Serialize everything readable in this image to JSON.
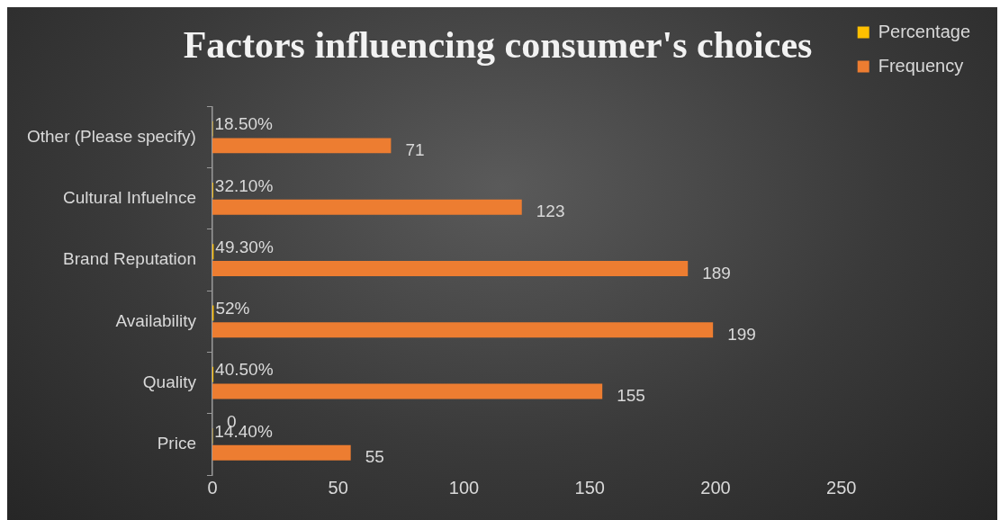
{
  "chart_data": {
    "type": "bar",
    "orientation": "horizontal",
    "title": "Factors influencing consumer's choices",
    "categories": [
      "Other (Please specify)",
      "Cultural Infuelnce",
      "Brand Reputation",
      "Availability",
      "Quality",
      "Price"
    ],
    "series": [
      {
        "name": "Percentage",
        "color": "#ffc000",
        "values": [
          0.185,
          0.321,
          0.493,
          0.52,
          0.405,
          0.144
        ],
        "value_labels": [
          "18.50%",
          "32.10%",
          "49.30%",
          "52%",
          "40.50%",
          "14.40%"
        ]
      },
      {
        "name": "Frequency",
        "color": "#ed7d31",
        "values": [
          71,
          123,
          189,
          199,
          155,
          55
        ],
        "value_labels": [
          "71",
          "123",
          "189",
          "199",
          "155",
          "55"
        ]
      }
    ],
    "xlim": [
      0,
      250
    ],
    "xticks": [
      0,
      50,
      100,
      150,
      200,
      250
    ],
    "grid": false,
    "legend": "top right",
    "annotations": [
      {
        "text": "0",
        "x": 0,
        "y": "Price"
      }
    ]
  }
}
